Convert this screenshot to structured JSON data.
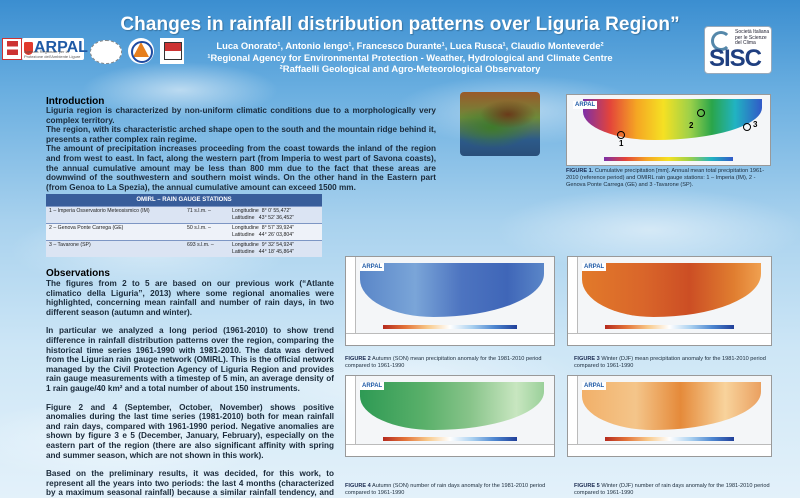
{
  "title": "Changes in rainfall distribution patterns over Liguria Region”",
  "authors": {
    "line1": "Luca Onorato¹, Antonio Iengo¹, Francesco Durante¹, Luca Rusca¹, Claudio Monteverde²",
    "line2": "¹Regional Agency for Environmental Protection - Weather, Hydrological and Climate Centre",
    "line3": "²Raffaelli Geological and Agro-Meteorological Observatory"
  },
  "logos": {
    "arpal": "ARPAL",
    "arpal_sub": "Agenzia Regionale per la Protezione dell'Ambiente Ligure",
    "sisc_sub": "Società Italiana per le Scienze del Clima",
    "sisc": "SISC"
  },
  "introduction": {
    "heading": "Introduction",
    "paragraphs": [
      "Liguria region is characterized by non-uniform climatic conditions due to a morphologically very complex territory.",
      "The region, with its characteristic arched shape open to the south and the mountain ridge behind it, presents a rather complex rain regime.",
      "The amount of precipitation increases proceeding from the coast towards the inland of the region and from west to east. In fact, along the western part (from Imperia to west part of Savona coasts), the annual cumulative amount may be less than 800 mm due to the fact that these areas are downwind of the southwestern and southern moist winds. On the other hand in the Eastern part (from Genoa to La Spezia), the annual cumulative amount can exceed 1500 mm."
    ]
  },
  "table": {
    "header": "OMIRL – RAIN GAUGE STATIONS",
    "rows": [
      {
        "name": "1 – Imperia Osservatorio Meteosismico (IM)",
        "alt": "71 s.l.m. –",
        "lon_label": "Longitudine",
        "lon": "8° 0’ 55,472”",
        "lat_label": "Latitudine",
        "lat": "43° 52’ 36,452”"
      },
      {
        "name": "2 – Genova Ponte Carrega (GE)",
        "alt": "50 s.l.m. –",
        "lon_label": "Longitudine",
        "lon": "8° 57’ 39,924”",
        "lat_label": "Latitudine",
        "lat": "44° 26’ 03,804”"
      },
      {
        "name": "3 – Tavarone (SP)",
        "alt": "693 s.l.m. –",
        "lon_label": "Longitudine",
        "lon": "9° 32’ 54,924”",
        "lat_label": "Latitudine",
        "lat": "44° 18’ 45,864”"
      }
    ]
  },
  "observations": {
    "heading": "Observations",
    "paragraphs": [
      "The figures from 2 to 5 are based on our previous work (“Atlante climatico della Liguria”, 2013) where some regional anomalies were highlighted, concerning mean rainfall and number of rain days, in two different season (autumn and winter).",
      "In particular we analyzed a long period (1961-2010) to show trend difference in rainfall distribution patterns over the region, comparing the historical time series 1961-1990 with 1981-2010. The data was derived from the Ligurian rain gauge network (OMIRL). This is the official network managed by the Civil Protection Agency of Liguria Region and provides rain gauge measurements with a timestep of 5 min, an average density of 1 rain gauge/40 km² and a total number of about 150 instruments.",
      "Figure 2 and 4 (September, October, November) shows positive anomalies during the last time series (1981-2010) both for mean rainfall and rain days, compared with 1961-1990 period. Negative anomalies are shown by figure 3 e 5 (December, January, February), especially on the eastern part of the region (there are also significant affinity with spring and summer season, which are not shown in this work).",
      "Based on the preliminary results, it was decided, for this work, to represent all the years into two periods: the last 4 months (characterized by a maximum seasonal rainfall) because a similar rainfall tendency, and remaining 8 months (all the other seasons characterized by a generally"
    ]
  },
  "maps": {
    "badge": "ARPAL",
    "marker_labels": [
      "1",
      "2",
      "3"
    ]
  },
  "captions": {
    "fig1_bold": "FIGURE 1.",
    "fig1": " Cumulative precipitation [mm]. Annual mean total precipitation 1961-2010 (reference period) and OMIRL rain gauge stations: 1 – Imperia (IM), 2 - Genova Ponte Carrega (GE) and 3 -Tavarone (SP).",
    "fig2_bold": "FIGURE 2",
    "fig2": " Autumn (SON) mean precipitation anomaly for the 1981-2010 period compared to 1961-1990",
    "fig3_bold": "FIGURE 3",
    "fig3": " Winter (DJF) mean precipitation anomaly for the 1981-2010 period compared to 1961-1990",
    "fig4_bold": "FIGURE 4",
    "fig4": " Autumn (SON) number of rain days anomaly for the 1981-2010 period compared to 1961-1990",
    "fig5_bold": "FIGURE 5",
    "fig5": " Winter (DJF) number of rain days anomaly for the 1981-2010 period compared to 1961-1990"
  }
}
